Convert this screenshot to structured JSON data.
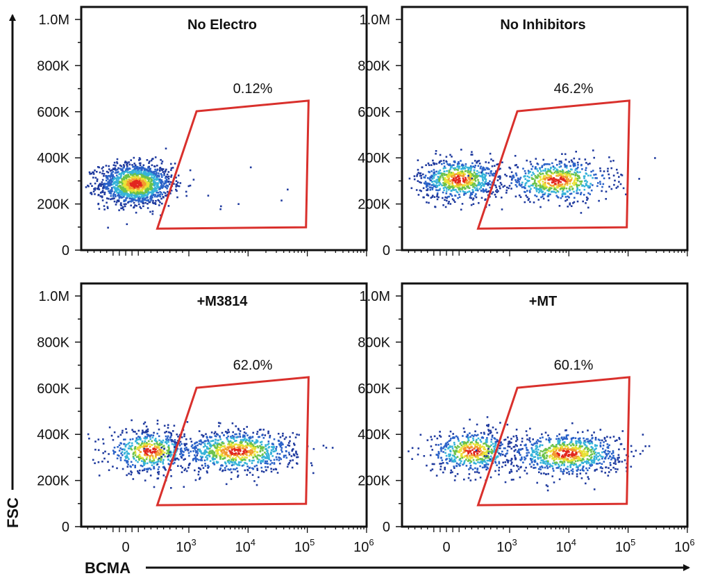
{
  "chart_data": [
    {
      "type": "scatter",
      "title": "No Electro",
      "gate_percent": "0.12%",
      "populations": [
        {
          "bcma_center": 150,
          "fsc_center": 290000,
          "sd_decades": 0.22,
          "sd_fsc": 45000,
          "fraction": 0.995
        },
        {
          "bcma_center": 3000,
          "fsc_center": 280000,
          "sd_decades": 0.5,
          "sd_fsc": 50000,
          "fraction": 0.005
        }
      ]
    },
    {
      "type": "scatter",
      "title": "No Inhibitors",
      "gate_percent": "46.2%",
      "populations": [
        {
          "bcma_center": 190,
          "fsc_center": 310000,
          "sd_decades": 0.25,
          "sd_fsc": 45000,
          "fraction": 0.54
        },
        {
          "bcma_center": 6200,
          "fsc_center": 305000,
          "sd_decades": 0.35,
          "sd_fsc": 45000,
          "fraction": 0.46
        }
      ]
    },
    {
      "type": "scatter",
      "title": "+M3814",
      "gate_percent": "62.0%",
      "populations": [
        {
          "bcma_center": 370,
          "fsc_center": 330000,
          "sd_decades": 0.25,
          "sd_fsc": 45000,
          "fraction": 0.38
        },
        {
          "bcma_center": 6300,
          "fsc_center": 330000,
          "sd_decades": 0.38,
          "sd_fsc": 45000,
          "fraction": 0.62
        }
      ]
    },
    {
      "type": "scatter",
      "title": "+MT",
      "gate_percent": "60.1%",
      "populations": [
        {
          "bcma_center": 400,
          "fsc_center": 330000,
          "sd_decades": 0.25,
          "sd_fsc": 45000,
          "fraction": 0.4
        },
        {
          "bcma_center": 9000,
          "fsc_center": 320000,
          "sd_decades": 0.36,
          "sd_fsc": 45000,
          "fraction": 0.6
        }
      ]
    }
  ],
  "shared": {
    "xlabel": "BCMA",
    "ylabel": "FSC",
    "x_scale": "biexponential",
    "xlim": [
      -700,
      1000000
    ],
    "ylim": [
      0,
      1000000
    ],
    "x_ticks": [
      {
        "value": 0,
        "base": "0",
        "exp": ""
      },
      {
        "value": 1000,
        "base": "10",
        "exp": "3"
      },
      {
        "value": 10000,
        "base": "10",
        "exp": "4"
      },
      {
        "value": 100000,
        "base": "10",
        "exp": "5"
      },
      {
        "value": 1000000,
        "base": "10",
        "exp": "6"
      }
    ],
    "y_ticks": [
      {
        "value": 0,
        "label": "0"
      },
      {
        "value": 200000,
        "label": "200K"
      },
      {
        "value": 400000,
        "label": "400K"
      },
      {
        "value": 600000,
        "label": "600K"
      },
      {
        "value": 800000,
        "label": "800K"
      },
      {
        "value": 1000000,
        "label": "1.0M"
      }
    ],
    "gate": {
      "color": "#d9302c",
      "vertices": [
        [
          500,
          93000
        ],
        [
          1350,
          602000
        ],
        [
          105000,
          648000
        ],
        [
          95000,
          99000
        ]
      ]
    },
    "density_colors": [
      "#1f3a9e",
      "#2a62c8",
      "#36b3d9",
      "#6cc24a",
      "#e8e234",
      "#f29a2e",
      "#e2261f"
    ]
  }
}
